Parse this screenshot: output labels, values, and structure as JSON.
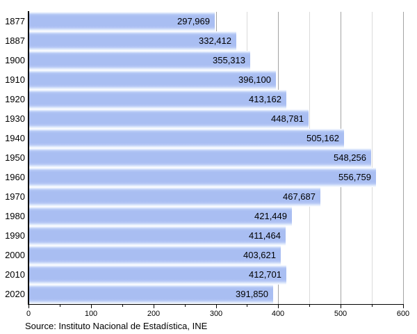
{
  "chart_data": {
    "type": "bar",
    "orientation": "horizontal",
    "title": "",
    "xlabel": "",
    "ylabel": "",
    "categories": [
      "1877",
      "1887",
      "1900",
      "1910",
      "1920",
      "1930",
      "1940",
      "1950",
      "1960",
      "1970",
      "1980",
      "1990",
      "2000",
      "2010",
      "2020"
    ],
    "values": [
      297969,
      332412,
      355313,
      396100,
      413162,
      448781,
      505162,
      548256,
      556759,
      467687,
      421449,
      411464,
      403621,
      412701,
      391850
    ],
    "value_labels": [
      "297,969",
      "332,412",
      "355,313",
      "396,100",
      "413,162",
      "448,781",
      "505,162",
      "548,256",
      "556,759",
      "467,687",
      "421,449",
      "411,464",
      "403,621",
      "412,701",
      "391,850"
    ],
    "xlim": [
      0,
      600
    ],
    "x_tick_values": [
      0,
      100,
      200,
      300,
      400,
      500,
      600
    ],
    "x_tick_labels": [
      "0",
      "100",
      "200",
      "300",
      "400",
      "500",
      "600"
    ],
    "x_minor_tick_step": 50,
    "axis_scale_note": "thousands",
    "grid": true,
    "legend": "none",
    "source": "Source: Instituto Nacional de Estadística, INE",
    "colors": {
      "bar_body": "#a9bef2",
      "bar_highlight": "#dde8fb",
      "gridline_major": "#a3a3a3",
      "gridline_minor": "#dadada",
      "axis": "#000000",
      "text": "#000000",
      "background": "#ffffff"
    }
  }
}
